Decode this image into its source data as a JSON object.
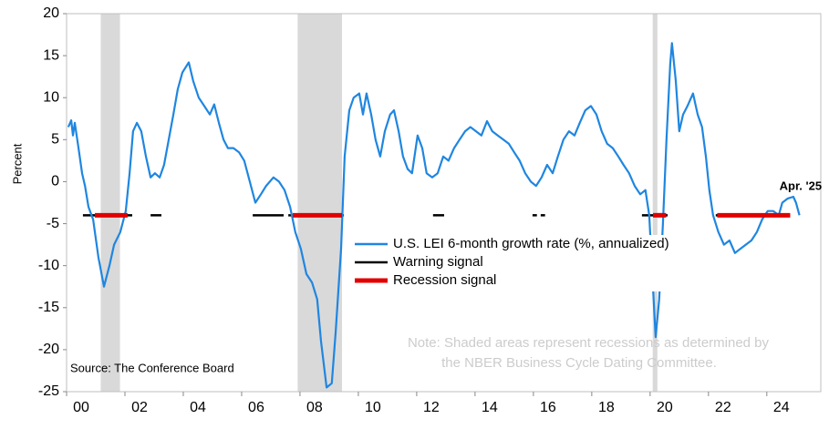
{
  "chart_data": {
    "type": "line",
    "y_label": "Percent",
    "source": "Source: The Conference Board",
    "note": [
      "Note: Shaded areas represent recessions as determined by",
      "the NBER Business Cycle Dating Committee."
    ],
    "annotation": "Apr. '25",
    "xlim": [
      2000,
      2025.85
    ],
    "xticks": [
      {
        "value": 2000,
        "label": "00"
      },
      {
        "value": 2002,
        "label": "02"
      },
      {
        "value": 2004,
        "label": "04"
      },
      {
        "value": 2006,
        "label": "06"
      },
      {
        "value": 2008,
        "label": "08"
      },
      {
        "value": 2010,
        "label": "10"
      },
      {
        "value": 2012,
        "label": "12"
      },
      {
        "value": 2014,
        "label": "14"
      },
      {
        "value": 2016,
        "label": "16"
      },
      {
        "value": 2018,
        "label": "18"
      },
      {
        "value": 2020,
        "label": "20"
      },
      {
        "value": 2022,
        "label": "22"
      },
      {
        "value": 2024,
        "label": "24"
      }
    ],
    "ylim": [
      -25,
      20
    ],
    "yticks": [
      20,
      15,
      10,
      5,
      0,
      -5,
      -10,
      -15,
      -20,
      -25
    ],
    "recessions": {
      "color": "#d9d9d9",
      "periods": [
        [
          2001.17,
          2001.83
        ],
        [
          2007.92,
          2009.44
        ],
        [
          2020.09,
          2020.25
        ]
      ]
    },
    "x": [
      2000.06,
      2000.16,
      2000.22,
      2000.28,
      2000.41,
      2000.53,
      2000.63,
      2000.75,
      2000.91,
      2001.09,
      2001.28,
      2001.47,
      2001.63,
      2001.84,
      2002.03,
      2002.16,
      2002.28,
      2002.41,
      2002.56,
      2002.72,
      2002.88,
      2003.03,
      2003.19,
      2003.34,
      2003.5,
      2003.66,
      2003.81,
      2003.97,
      2004.19,
      2004.34,
      2004.53,
      2004.72,
      2004.91,
      2005.06,
      2005.22,
      2005.38,
      2005.53,
      2005.72,
      2005.91,
      2006.09,
      2006.28,
      2006.47,
      2006.66,
      2006.84,
      2007.09,
      2007.28,
      2007.47,
      2007.66,
      2007.84,
      2008.03,
      2008.22,
      2008.41,
      2008.59,
      2008.72,
      2008.91,
      2009.09,
      2009.22,
      2009.41,
      2009.53,
      2009.69,
      2009.84,
      2010.03,
      2010.16,
      2010.28,
      2010.44,
      2010.59,
      2010.75,
      2010.91,
      2011.09,
      2011.22,
      2011.38,
      2011.53,
      2011.69,
      2011.84,
      2012.03,
      2012.19,
      2012.34,
      2012.53,
      2012.72,
      2012.91,
      2013.09,
      2013.28,
      2013.47,
      2013.66,
      2013.84,
      2014.03,
      2014.22,
      2014.41,
      2014.59,
      2014.78,
      2014.97,
      2015.16,
      2015.34,
      2015.53,
      2015.72,
      2015.91,
      2016.09,
      2016.28,
      2016.47,
      2016.66,
      2016.84,
      2017.03,
      2017.22,
      2017.41,
      2017.59,
      2017.78,
      2017.97,
      2018.16,
      2018.34,
      2018.53,
      2018.72,
      2018.91,
      2019.09,
      2019.28,
      2019.47,
      2019.66,
      2019.84,
      2019.97,
      2020.09,
      2020.19,
      2020.31,
      2020.44,
      2020.56,
      2020.69,
      2020.75,
      2020.88,
      2021.0,
      2021.13,
      2021.28,
      2021.47,
      2021.63,
      2021.78,
      2021.91,
      2022.03,
      2022.16,
      2022.34,
      2022.53,
      2022.72,
      2022.91,
      2023.09,
      2023.28,
      2023.47,
      2023.66,
      2023.84,
      2024.03,
      2024.22,
      2024.41,
      2024.53,
      2024.72,
      2024.91,
      2025.0,
      2025.12
    ],
    "series": [
      {
        "name": "U.S. LEI 6-month growth rate (%, annualized)",
        "color": "#1f86e0",
        "values": [
          6.5,
          7.3,
          5.5,
          7,
          4,
          1,
          -0.5,
          -3,
          -4.5,
          -9,
          -12.5,
          -10,
          -7.5,
          -6,
          -3.5,
          1,
          6,
          7,
          6,
          3,
          0.5,
          1,
          0.5,
          2,
          5,
          8,
          11,
          13,
          14.2,
          12,
          10,
          9,
          8,
          9.2,
          7,
          5,
          4,
          4,
          3.5,
          2.5,
          0,
          -2.5,
          -1.5,
          -0.5,
          0.5,
          0,
          -1,
          -3,
          -6,
          -8,
          -11,
          -12,
          -14,
          -19,
          -24.5,
          -24,
          -18,
          -8,
          3,
          8.5,
          10,
          10.5,
          8,
          10.5,
          8,
          5,
          3,
          6,
          8,
          8.5,
          6,
          3,
          1.5,
          1,
          5.5,
          4,
          1,
          0.5,
          1,
          3,
          2.5,
          4,
          5,
          6,
          6.5,
          6,
          5.5,
          7.2,
          6,
          5.5,
          5,
          4.5,
          3.5,
          2.5,
          1,
          0,
          -0.5,
          0.5,
          2,
          1,
          3,
          5,
          6,
          5.5,
          7,
          8.5,
          9,
          8,
          6,
          4.5,
          4,
          3,
          2,
          1,
          -0.5,
          -1.5,
          -1,
          -4,
          -12,
          -18.5,
          -14,
          -5,
          5,
          14,
          16.5,
          12,
          6,
          8,
          9,
          10.5,
          8,
          6.5,
          3,
          -1,
          -4,
          -6,
          -7.5,
          -7,
          -8.5,
          -8,
          -7.5,
          -7,
          -6,
          -4.5,
          -3.5,
          -3.5,
          -4,
          -2.5,
          -2,
          -1.8,
          -2.5,
          -4
        ]
      }
    ],
    "warning_signal": {
      "name": "Warning signal",
      "color": "#000000",
      "level": -4,
      "periods": [
        [
          2000.56,
          2002.25
        ],
        [
          2002.88,
          2003.25
        ],
        [
          2006.38,
          2007.44
        ],
        [
          2007.6,
          2009.5
        ],
        [
          2012.56,
          2012.94
        ],
        [
          2015.97,
          2016.12
        ],
        [
          2016.25,
          2016.4
        ],
        [
          2019.72,
          2020.6
        ],
        [
          2022.25,
          2024.8
        ]
      ]
    },
    "recession_signal": {
      "name": "Recession signal",
      "color": "#e00000",
      "level": -4,
      "periods": [
        [
          2000.97,
          2002.09
        ],
        [
          2007.75,
          2009.44
        ],
        [
          2020.1,
          2020.55
        ],
        [
          2022.3,
          2024.8
        ]
      ]
    }
  }
}
